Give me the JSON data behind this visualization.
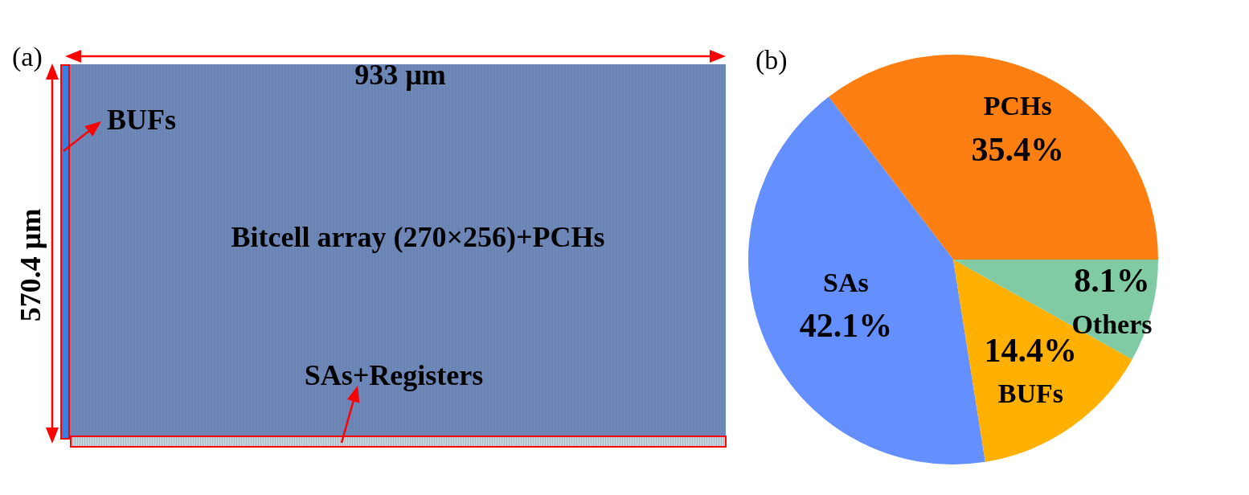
{
  "chart_data": [
    {
      "type": "other",
      "title": "(a)",
      "annotations": [
        "933 µm",
        "570.4 µm",
        "BUFs",
        "Bitcell array (270×256)+PCHs",
        "SAs+Registers"
      ]
    },
    {
      "type": "pie",
      "title": "(b)",
      "categories": [
        "PCHs",
        "SAs",
        "BUFs",
        "Others"
      ],
      "values": [
        35.4,
        42.1,
        14.4,
        8.1
      ],
      "colors": [
        "#fd7f12",
        "#648fff",
        "#ffb000",
        "#80cba4"
      ],
      "value_labels": [
        "35.4%",
        "42.1%",
        "14.4%",
        "8.1%"
      ]
    }
  ]
}
